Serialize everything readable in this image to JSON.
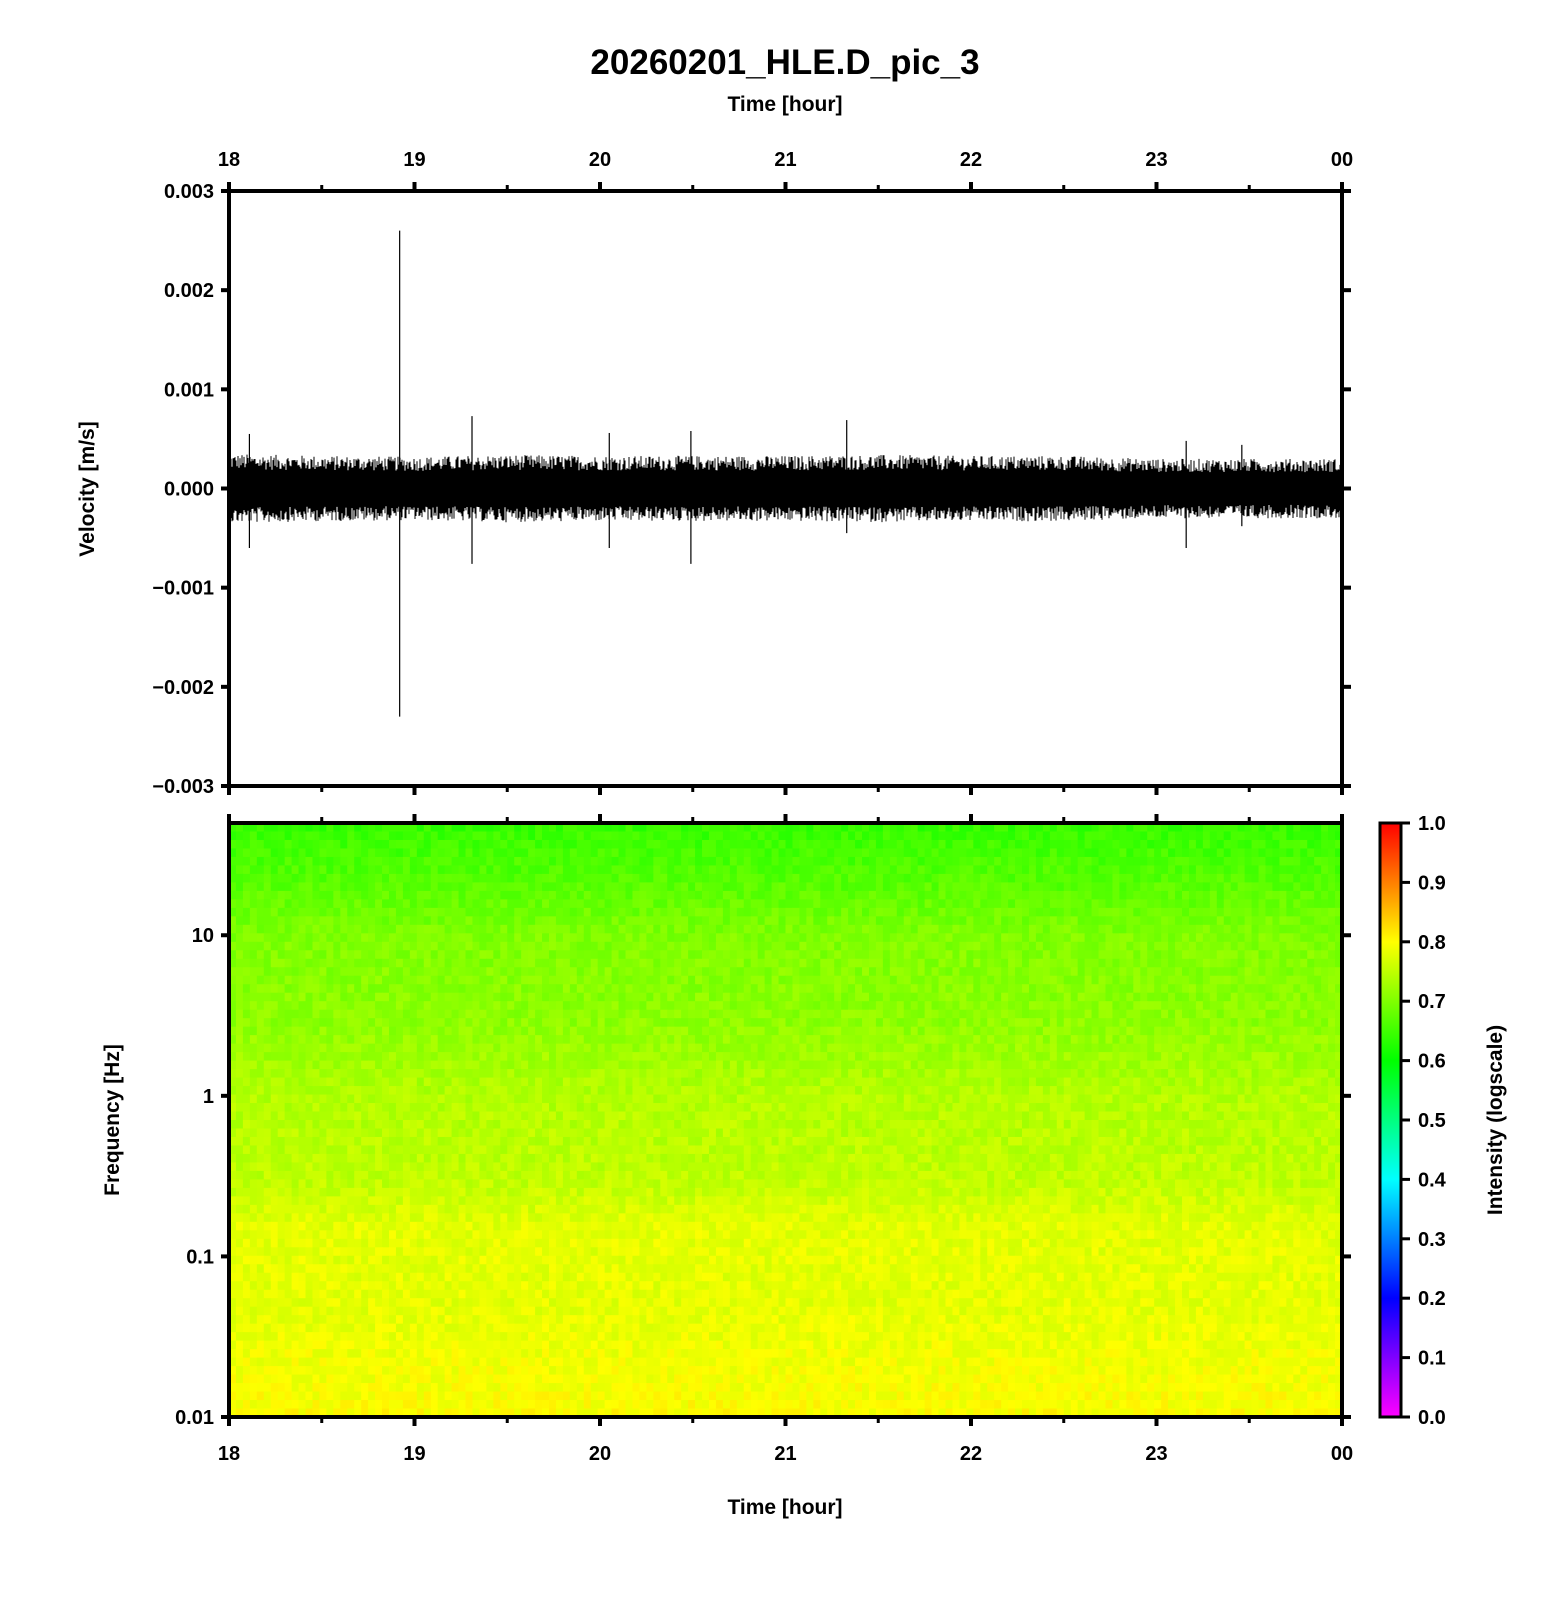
{
  "title": "20260201_HLE.D_pic_3",
  "chart_data": [
    {
      "type": "line",
      "panel": "waveform",
      "xlabel": "Time [hour]",
      "ylabel": "Velocity [m/s]",
      "x_tick_labels": [
        "18",
        "19",
        "20",
        "21",
        "22",
        "23",
        "00"
      ],
      "xlim": [
        18,
        24
      ],
      "ylim": [
        -0.003,
        0.003
      ],
      "y_tick_labels": [
        "0.003",
        "0.002",
        "0.001",
        "0.000",
        "−0.001",
        "−0.002",
        "−0.003"
      ],
      "y_tick_values": [
        0.003,
        0.002,
        0.001,
        0.0,
        -0.001,
        -0.002,
        -0.003
      ],
      "noise_envelope": {
        "x": [
          18.0,
          18.5,
          19.0,
          19.5,
          20.0,
          20.5,
          21.0,
          21.5,
          22.0,
          22.5,
          23.0,
          23.5,
          24.0
        ],
        "amplitude": [
          0.00035,
          0.00033,
          0.00032,
          0.00034,
          0.00033,
          0.00033,
          0.00033,
          0.00034,
          0.00033,
          0.00033,
          0.0003,
          0.0003,
          0.0003
        ]
      },
      "spikes": [
        {
          "x": 18.11,
          "max": 0.00055,
          "min": -0.0006
        },
        {
          "x": 18.92,
          "max": 0.0026,
          "min": -0.0023
        },
        {
          "x": 19.31,
          "max": 0.00073,
          "min": -0.00076
        },
        {
          "x": 20.05,
          "max": 0.00056,
          "min": -0.0006
        },
        {
          "x": 20.49,
          "max": 0.00058,
          "min": -0.00076
        },
        {
          "x": 21.33,
          "max": 0.00069,
          "min": -0.00045
        },
        {
          "x": 23.16,
          "max": 0.00048,
          "min": -0.0006
        },
        {
          "x": 23.46,
          "max": 0.00044,
          "min": -0.00038
        }
      ],
      "grid": false
    },
    {
      "type": "heatmap",
      "panel": "spectrogram",
      "xlabel": "Time [hour]",
      "ylabel": "Frequency [Hz]",
      "x_tick_labels": [
        "18",
        "19",
        "20",
        "21",
        "22",
        "23",
        "00"
      ],
      "xlim": [
        18,
        24
      ],
      "ylim": [
        0.01,
        50
      ],
      "y_scale": "log",
      "y_tick_labels": [
        "10",
        "1",
        "0.1",
        "0.01"
      ],
      "y_tick_values": [
        10,
        1,
        0.1,
        0.01
      ],
      "intensity_profile": {
        "frequency_hz": [
          50,
          20,
          10,
          3,
          1,
          0.3,
          0.15,
          0.05,
          0.01
        ],
        "intensity": [
          0.64,
          0.67,
          0.7,
          0.71,
          0.74,
          0.75,
          0.78,
          0.78,
          0.8
        ]
      },
      "colorbar": {
        "label": "Intensity (logscale)",
        "range": [
          0.0,
          1.0
        ],
        "tick_labels": [
          "1.0",
          "0.9",
          "0.8",
          "0.7",
          "0.6",
          "0.5",
          "0.4",
          "0.3",
          "0.2",
          "0.1",
          "0.0"
        ],
        "tick_values": [
          1.0,
          0.9,
          0.8,
          0.7,
          0.6,
          0.5,
          0.4,
          0.3,
          0.2,
          0.1,
          0.0
        ],
        "colors": [
          "#ff00ff",
          "#0000ff",
          "#00ffff",
          "#00ff00",
          "#ffff00",
          "#ff0000"
        ]
      },
      "grid": false
    }
  ]
}
